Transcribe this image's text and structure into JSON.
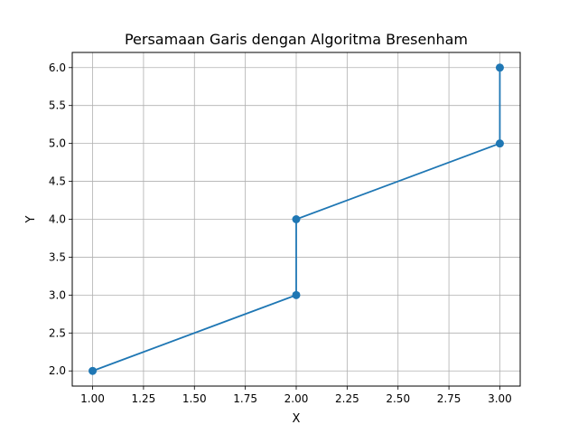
{
  "chart_data": {
    "type": "line",
    "title": "Persamaan Garis dengan Algoritma Bresenham",
    "xlabel": "X",
    "ylabel": "Y",
    "xlim": [
      0.9,
      3.1
    ],
    "ylim": [
      1.8,
      6.2
    ],
    "x_ticks": [
      "1.00",
      "1.25",
      "1.50",
      "1.75",
      "2.00",
      "2.25",
      "2.50",
      "2.75",
      "3.00"
    ],
    "y_ticks": [
      "2.0",
      "2.5",
      "3.0",
      "3.5",
      "4.0",
      "4.5",
      "5.0",
      "5.5",
      "6.0"
    ],
    "grid": true,
    "series": [
      {
        "color": "#1f77b4",
        "marker": "circle",
        "points": [
          {
            "x": 1,
            "y": 2
          },
          {
            "x": 2,
            "y": 3
          },
          {
            "x": 2,
            "y": 4
          },
          {
            "x": 3,
            "y": 5
          },
          {
            "x": 3,
            "y": 6
          }
        ]
      }
    ]
  }
}
